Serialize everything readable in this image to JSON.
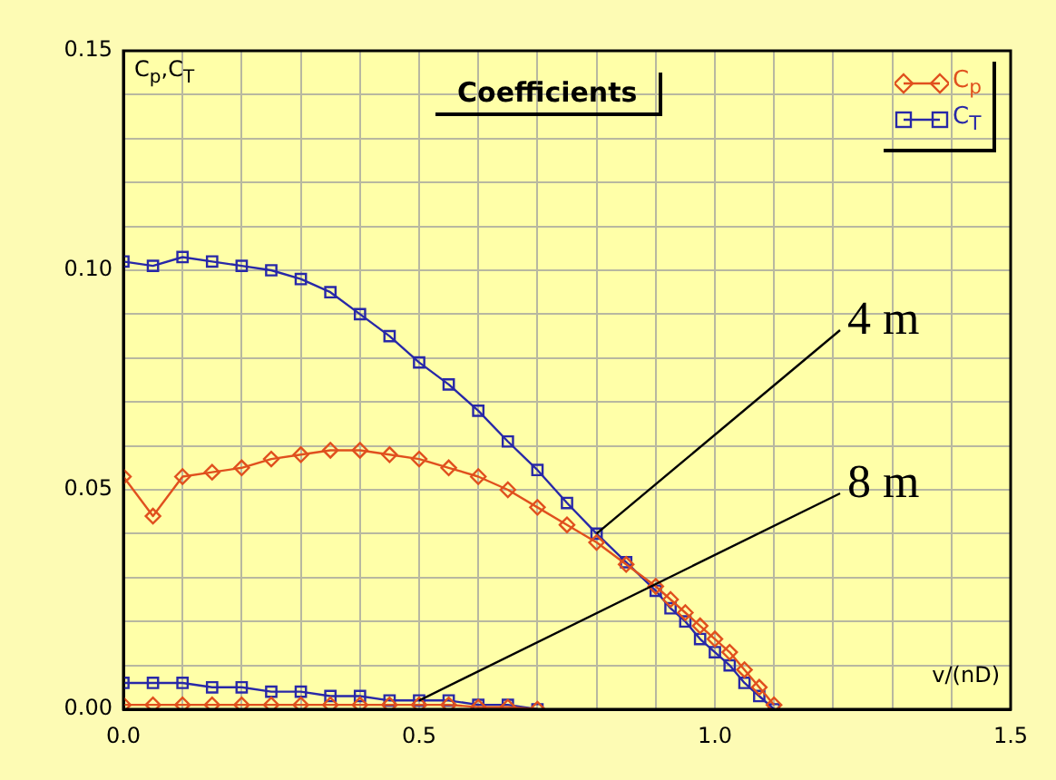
{
  "chart_data": {
    "type": "line",
    "title": "Coefficients",
    "xlabel": "v/(nD)",
    "ylabel": "C$_{p}$,C$_{T}$",
    "xlim": [
      0,
      1.5
    ],
    "ylim": [
      0,
      0.15
    ],
    "xticks": [
      {
        "value": 0,
        "label": "0.0"
      },
      {
        "value": 0.1,
        "label": null
      },
      {
        "value": 0.2,
        "label": null
      },
      {
        "value": 0.3,
        "label": null
      },
      {
        "value": 0.4,
        "label": null
      },
      {
        "value": 0.5,
        "label": "0.5"
      },
      {
        "value": 0.6,
        "label": null
      },
      {
        "value": 0.7,
        "label": null
      },
      {
        "value": 0.8,
        "label": null
      },
      {
        "value": 0.9,
        "label": null
      },
      {
        "value": 1,
        "label": "1.0"
      },
      {
        "value": 1.1,
        "label": null
      },
      {
        "value": 1.2,
        "label": null
      },
      {
        "value": 1.3,
        "label": null
      },
      {
        "value": 1.4,
        "label": null
      },
      {
        "value": 1.5,
        "label": "1.5"
      }
    ],
    "yticks": [
      {
        "value": 0,
        "label": "0.00"
      },
      {
        "value": 0.01,
        "label": null
      },
      {
        "value": 0.02,
        "label": null
      },
      {
        "value": 0.03,
        "label": null
      },
      {
        "value": 0.04,
        "label": null
      },
      {
        "value": 0.05,
        "label": "0.05"
      },
      {
        "value": 0.06,
        "label": null
      },
      {
        "value": 0.07,
        "label": null
      },
      {
        "value": 0.08,
        "label": null
      },
      {
        "value": 0.09,
        "label": null
      },
      {
        "value": 0.1,
        "label": "0.10"
      },
      {
        "value": 0.11,
        "label": null
      },
      {
        "value": 0.12,
        "label": null
      },
      {
        "value": 0.13,
        "label": null
      },
      {
        "value": 0.14,
        "label": null
      },
      {
        "value": 0.15,
        "label": "0.15"
      }
    ],
    "grid": true,
    "legend": "top right",
    "line_style": "solid",
    "annotations": [
      {
        "text": "4 m",
        "x": 0.8,
        "y": 0.04
      },
      {
        "text": "8 m",
        "x": 0.5,
        "y": 0.002
      }
    ],
    "series": [
      {
        "name": "C$_{p}$",
        "color": "#e0501e",
        "marker": "diamond",
        "x": [
          0,
          0.05,
          0.1,
          0.15,
          0.2,
          0.25,
          0.3,
          0.35,
          0.4,
          0.45,
          0.5,
          0.55,
          0.6,
          0.65,
          0.7,
          0.75,
          0.8,
          0.85,
          0.9,
          0.925,
          0.95,
          0.975,
          1,
          1.025,
          1.05,
          1.075,
          1.1
        ],
        "values": [
          0.053,
          0.044,
          0.053,
          0.054,
          0.055,
          0.057,
          0.058,
          0.059,
          0.059,
          0.058,
          0.057,
          0.055,
          0.053,
          0.05,
          0.046,
          0.042,
          0.038,
          0.033,
          0.028,
          0.025,
          0.022,
          0.019,
          0.016,
          0.013,
          0.009,
          0.005,
          0.001
        ]
      },
      {
        "name": "C$_{T}$",
        "color": "#2828a8",
        "marker": "square",
        "x": [
          0,
          0.05,
          0.1,
          0.15,
          0.2,
          0.25,
          0.3,
          0.35,
          0.4,
          0.45,
          0.5,
          0.55,
          0.6,
          0.65,
          0.7,
          0.75,
          0.8,
          0.85,
          0.9,
          0.925,
          0.95,
          0.975,
          1,
          1.025,
          1.05,
          1.075,
          1.1
        ],
        "values": [
          0.102,
          0.101,
          0.103,
          0.102,
          0.101,
          0.1,
          0.098,
          0.095,
          0.09,
          0.085,
          0.079,
          0.074,
          0.068,
          0.061,
          0.0545,
          0.047,
          0.04,
          0.0335,
          0.027,
          0.023,
          0.02,
          0.016,
          0.013,
          0.01,
          0.006,
          0.003,
          0
        ]
      },
      {
        "color": "#e0501e",
        "marker": "diamond",
        "x": [
          0,
          0.05,
          0.1,
          0.15,
          0.2,
          0.25,
          0.3,
          0.35,
          0.4,
          0.45,
          0.5,
          0.55,
          0.6,
          0.65,
          0.7
        ],
        "values": [
          0.001,
          0.001,
          0.001,
          0.001,
          0.001,
          0.001,
          0.001,
          0.001,
          0.001,
          0.001,
          0.001,
          0.001,
          0.0005,
          0.0005,
          0
        ]
      },
      {
        "color": "#2828a8",
        "marker": "square",
        "x": [
          0,
          0.05,
          0.1,
          0.15,
          0.2,
          0.25,
          0.3,
          0.35,
          0.4,
          0.45,
          0.5,
          0.55,
          0.6,
          0.65,
          0.7
        ],
        "values": [
          0.006,
          0.006,
          0.006,
          0.005,
          0.005,
          0.004,
          0.004,
          0.003,
          0.003,
          0.002,
          0.002,
          0.002,
          0.001,
          0.001,
          0
        ]
      }
    ]
  }
}
